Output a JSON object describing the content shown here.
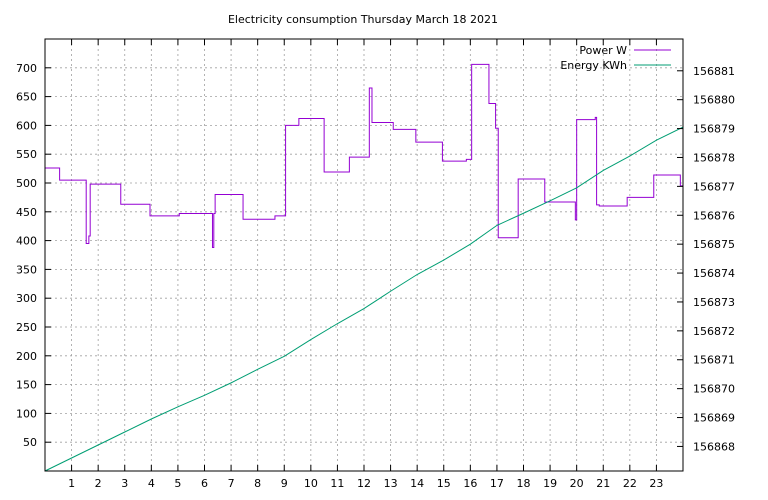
{
  "chart_data": {
    "type": "line",
    "title": "Electricity consumption Thursday March 18 2021",
    "xlabel": "",
    "ylabel": "",
    "y2label": "",
    "xlim": [
      0,
      24
    ],
    "ylim": [
      0,
      750
    ],
    "y2lim": [
      156867.15,
      156882.1
    ],
    "grid": true,
    "legend_position": "top-right",
    "x_ticks": [
      1,
      2,
      3,
      4,
      5,
      6,
      7,
      8,
      9,
      10,
      11,
      12,
      13,
      14,
      15,
      16,
      17,
      18,
      19,
      20,
      21,
      22,
      23
    ],
    "y_ticks": [
      50,
      100,
      150,
      200,
      250,
      300,
      350,
      400,
      450,
      500,
      550,
      600,
      650,
      700
    ],
    "y2_ticks": [
      156868,
      156869,
      156870,
      156871,
      156872,
      156873,
      156874,
      156875,
      156876,
      156877,
      156878,
      156879,
      156880,
      156881
    ],
    "series": [
      {
        "name": "Power W",
        "axis": "y",
        "color": "#9400d3",
        "step": true,
        "points": [
          [
            0,
            526
          ],
          [
            0.55,
            526
          ],
          [
            0.55,
            505
          ],
          [
            1.55,
            505
          ],
          [
            1.55,
            395
          ],
          [
            1.65,
            395
          ],
          [
            1.65,
            408
          ],
          [
            1.7,
            408
          ],
          [
            1.7,
            498
          ],
          [
            2.85,
            498
          ],
          [
            2.85,
            463
          ],
          [
            3.95,
            463
          ],
          [
            3.95,
            443
          ],
          [
            5.05,
            443
          ],
          [
            5.05,
            447
          ],
          [
            6.3,
            447
          ],
          [
            6.3,
            388
          ],
          [
            6.35,
            388
          ],
          [
            6.35,
            447
          ],
          [
            6.4,
            447
          ],
          [
            6.4,
            480
          ],
          [
            7.45,
            480
          ],
          [
            7.45,
            437
          ],
          [
            8.65,
            437
          ],
          [
            8.65,
            443
          ],
          [
            9.05,
            443
          ],
          [
            9.05,
            600
          ],
          [
            9.55,
            600
          ],
          [
            9.55,
            612
          ],
          [
            10.5,
            612
          ],
          [
            10.5,
            519
          ],
          [
            11.45,
            519
          ],
          [
            11.45,
            545
          ],
          [
            12.2,
            545
          ],
          [
            12.2,
            665
          ],
          [
            12.3,
            665
          ],
          [
            12.3,
            605
          ],
          [
            13.1,
            605
          ],
          [
            13.1,
            593
          ],
          [
            13.95,
            593
          ],
          [
            13.95,
            571
          ],
          [
            14.95,
            571
          ],
          [
            14.95,
            538
          ],
          [
            15.85,
            538
          ],
          [
            15.85,
            541
          ],
          [
            16.05,
            541
          ],
          [
            16.05,
            706
          ],
          [
            16.7,
            706
          ],
          [
            16.7,
            638
          ],
          [
            16.95,
            638
          ],
          [
            16.95,
            595
          ],
          [
            17.05,
            595
          ],
          [
            17.05,
            405
          ],
          [
            17.8,
            405
          ],
          [
            17.8,
            507
          ],
          [
            18.8,
            507
          ],
          [
            18.8,
            467
          ],
          [
            19.95,
            467
          ],
          [
            19.95,
            436
          ],
          [
            20.0,
            436
          ],
          [
            20.0,
            610
          ],
          [
            20.7,
            610
          ],
          [
            20.7,
            614
          ],
          [
            20.75,
            614
          ],
          [
            20.75,
            462
          ],
          [
            20.85,
            462
          ],
          [
            20.85,
            460
          ],
          [
            21.9,
            460
          ],
          [
            21.9,
            475
          ],
          [
            22.9,
            475
          ],
          [
            22.9,
            514
          ],
          [
            23.9,
            514
          ],
          [
            23.9,
            495
          ],
          [
            24.0,
            495
          ]
        ]
      },
      {
        "name": "Energy KWh",
        "axis": "y2",
        "color": "#009e73",
        "step": false,
        "points": [
          [
            0,
            156867.15
          ],
          [
            1,
            156867.6
          ],
          [
            2,
            156868.05
          ],
          [
            3,
            156868.5
          ],
          [
            4,
            156868.95
          ],
          [
            5,
            156869.37
          ],
          [
            6,
            156869.77
          ],
          [
            7,
            156870.2
          ],
          [
            8,
            156870.67
          ],
          [
            9,
            156871.12
          ],
          [
            10,
            156871.7
          ],
          [
            11,
            156872.25
          ],
          [
            12,
            156872.77
          ],
          [
            13,
            156873.37
          ],
          [
            14,
            156873.95
          ],
          [
            15,
            156874.45
          ],
          [
            16,
            156875.0
          ],
          [
            17,
            156875.65
          ],
          [
            18,
            156876.07
          ],
          [
            19,
            156876.5
          ],
          [
            20,
            156876.95
          ],
          [
            21,
            156877.55
          ],
          [
            22,
            156878.05
          ],
          [
            23,
            156878.6
          ],
          [
            24,
            156879.05
          ]
        ]
      }
    ]
  }
}
